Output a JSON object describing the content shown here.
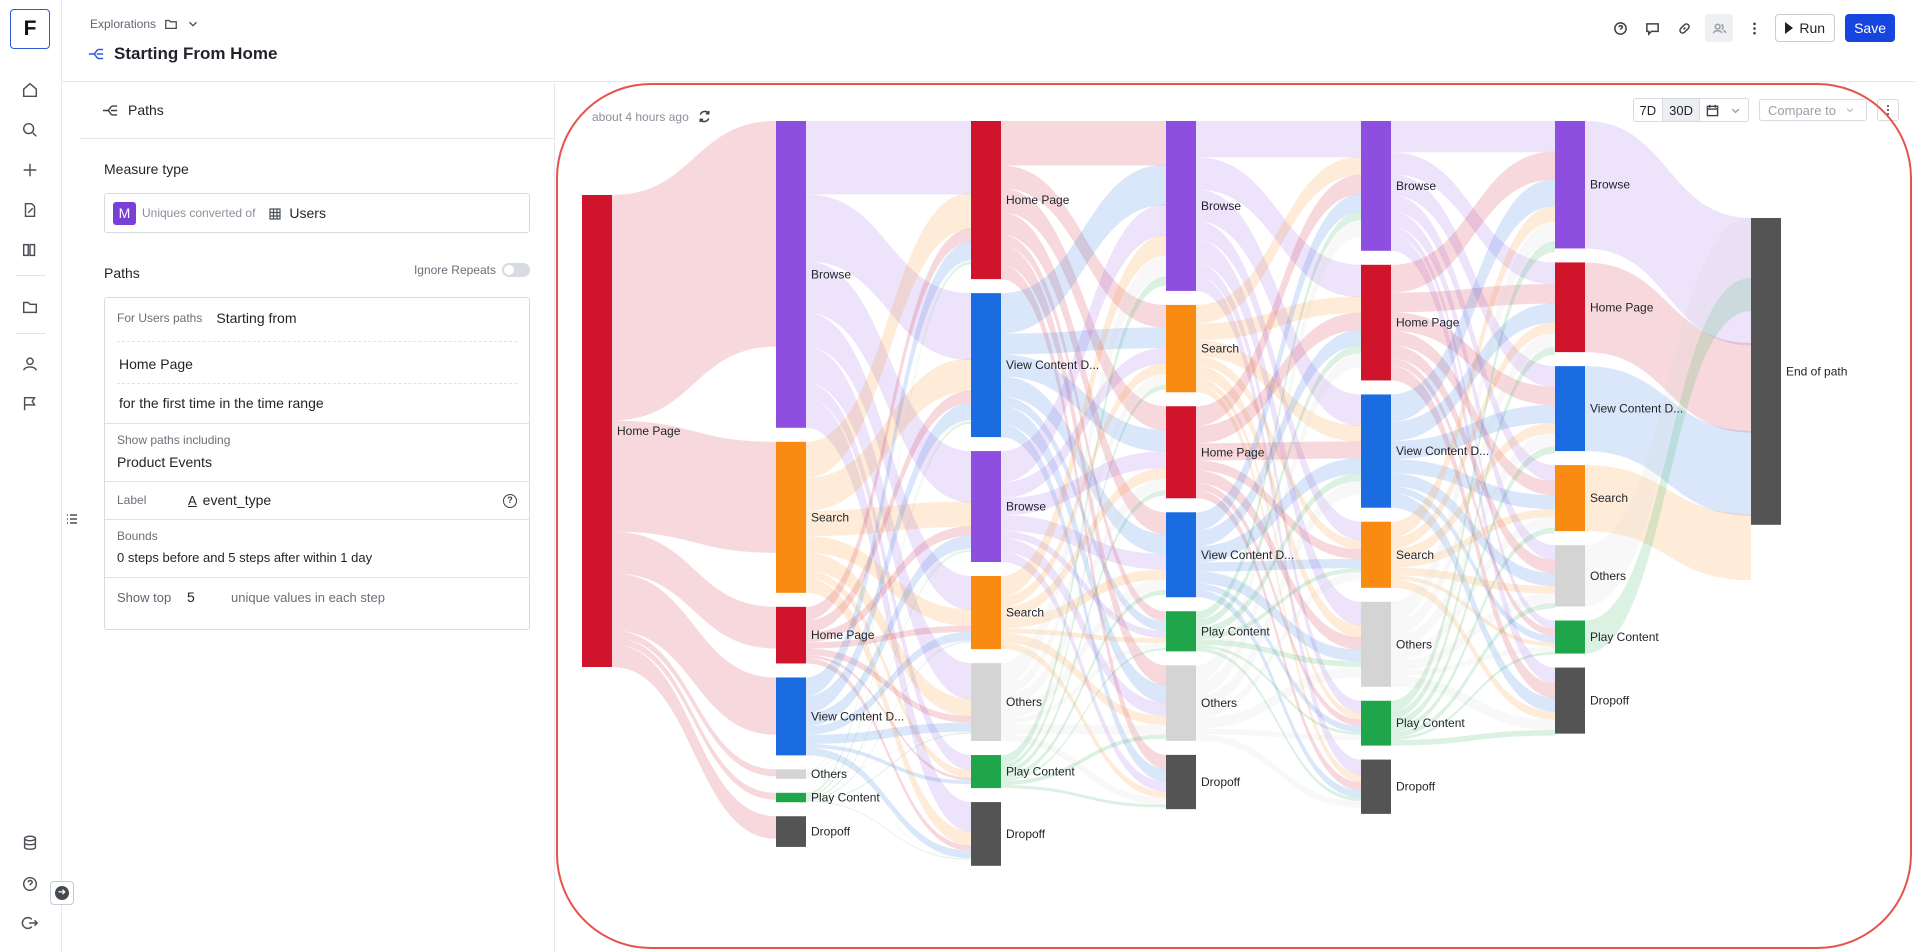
{
  "nav": {
    "logo": "F",
    "icons": [
      "home-icon",
      "search-icon",
      "plus-icon",
      "edit-doc-icon",
      "library-icon",
      "folder-icon",
      "user-icon",
      "flag-icon",
      "database-icon",
      "help-icon",
      "logout-icon"
    ]
  },
  "header": {
    "breadcrumb": "Explorations",
    "title": "Starting From Home",
    "run_label": "Run",
    "save_label": "Save",
    "accent": "#1645e0"
  },
  "panel": {
    "header_label": "Paths",
    "measure_type_title": "Measure type",
    "measure_badge": "M",
    "measure_sub": "Uniques converted of",
    "measure_value": "Users",
    "paths_title": "Paths",
    "ignore_repeats_label": "Ignore Repeats",
    "ignore_repeats_on": false,
    "for_users_label": "For Users paths",
    "starting_from": "Starting from",
    "start_event": "Home Page",
    "first_time_text": "for the first time in the time range",
    "show_paths_label": "Show paths including",
    "show_paths_value": "Product Events",
    "label_label": "Label",
    "label_prefix": "A",
    "label_value": "event_type",
    "bounds_label": "Bounds",
    "bounds_value": "0 steps before and 5 steps after within 1 day",
    "show_top_label": "Show top",
    "show_top_value": "5",
    "show_top_suffix": "unique values in each step"
  },
  "chart_toolbar": {
    "timestamp": "about 4 hours ago",
    "range_7d": "7D",
    "range_30d": "30D",
    "active_range": "30D",
    "compare_placeholder": "Compare to"
  },
  "chart_data": {
    "type": "sankey",
    "colors": {
      "Home Page": "#d0142c",
      "Browse": "#8e4fe0",
      "Search": "#f98b12",
      "View Content D...": "#1b6ce0",
      "Others": "#d4d4d4",
      "Play Content": "#1fa64a",
      "Dropoff": "#545454",
      "End of path": "#545454"
    },
    "steps": [
      [
        {
          "name": "Home Page",
          "value": 100
        }
      ],
      [
        {
          "name": "Browse",
          "value": 65
        },
        {
          "name": "Search",
          "value": 32
        },
        {
          "name": "Home Page",
          "value": 12
        },
        {
          "name": "View Content D...",
          "value": 16.5
        },
        {
          "name": "Others",
          "value": 2
        },
        {
          "name": "Play Content",
          "value": 2
        },
        {
          "name": "Dropoff",
          "value": 6.5
        }
      ],
      [
        {
          "name": "Home Page",
          "value": 33.5
        },
        {
          "name": "View Content D...",
          "value": 30.5
        },
        {
          "name": "Browse",
          "value": 23.5
        },
        {
          "name": "Search",
          "value": 15.5
        },
        {
          "name": "Others",
          "value": 16.5
        },
        {
          "name": "Play Content",
          "value": 7
        },
        {
          "name": "Dropoff",
          "value": 13.5
        }
      ],
      [
        {
          "name": "Browse",
          "value": 36
        },
        {
          "name": "Search",
          "value": 18.5
        },
        {
          "name": "Home Page",
          "value": 19.5
        },
        {
          "name": "View Content D...",
          "value": 18
        },
        {
          "name": "Play Content",
          "value": 8.5
        },
        {
          "name": "Others",
          "value": 16
        },
        {
          "name": "Dropoff",
          "value": 11.5
        }
      ],
      [
        {
          "name": "Browse",
          "value": 27.5
        },
        {
          "name": "Home Page",
          "value": 24.5
        },
        {
          "name": "View Content D...",
          "value": 24
        },
        {
          "name": "Search",
          "value": 14
        },
        {
          "name": "Others",
          "value": 18
        },
        {
          "name": "Play Content",
          "value": 9.5
        },
        {
          "name": "Dropoff",
          "value": 11.5
        }
      ],
      [
        {
          "name": "Browse",
          "value": 27
        },
        {
          "name": "Home Page",
          "value": 19
        },
        {
          "name": "View Content D...",
          "value": 18
        },
        {
          "name": "Search",
          "value": 14
        },
        {
          "name": "Others",
          "value": 13
        },
        {
          "name": "Play Content",
          "value": 7
        },
        {
          "name": "Dropoff",
          "value": 14
        }
      ],
      [
        {
          "name": "End of path",
          "value": 65
        }
      ]
    ]
  }
}
